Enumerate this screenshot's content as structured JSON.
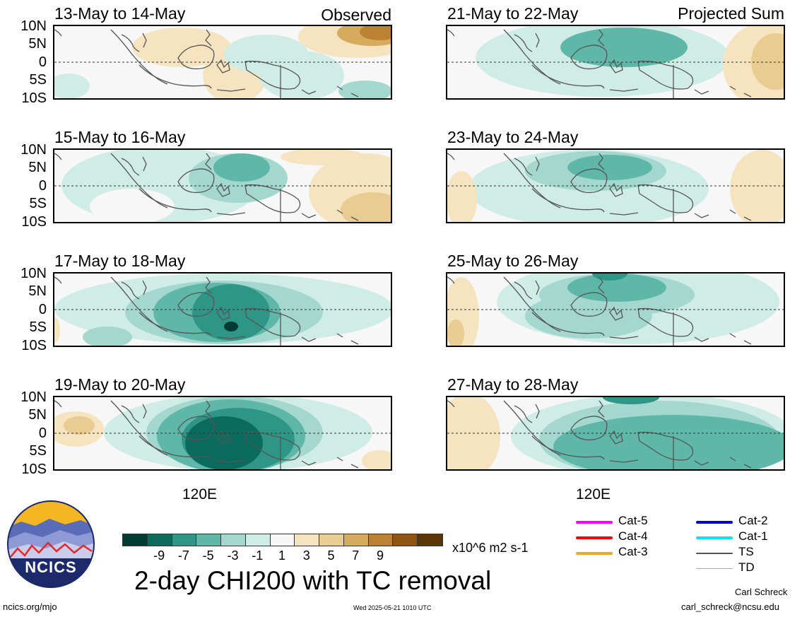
{
  "panels": [
    {
      "title": "13-May to 14-May",
      "label": "Observed"
    },
    {
      "title": "21-May to 22-May",
      "label": "Projected Sum"
    },
    {
      "title": "15-May to 16-May",
      "label": ""
    },
    {
      "title": "23-May to 24-May",
      "label": ""
    },
    {
      "title": "17-May to 18-May",
      "label": ""
    },
    {
      "title": "25-May to 26-May",
      "label": ""
    },
    {
      "title": "19-May to 20-May",
      "label": ""
    },
    {
      "title": "27-May to 28-May",
      "label": ""
    }
  ],
  "lat_labels": [
    "10N",
    "5N",
    "0",
    "5S",
    "10S"
  ],
  "lon_label": "120E",
  "colorbar": {
    "colors": [
      "#023b32",
      "#0b6b5f",
      "#2f9687",
      "#5fb7a8",
      "#a4d8cf",
      "#d0ece6",
      "#f7f7f7",
      "#f5e4bf",
      "#e9cc92",
      "#d7ab5e",
      "#bb8331",
      "#8d5510",
      "#5b3708"
    ],
    "labels": [
      "-9",
      "-7",
      "-5",
      "-3",
      "-1",
      "1",
      "3",
      "5",
      "7",
      "9"
    ],
    "units": "x10^6 m2 s-1"
  },
  "title": "2-day CHI200 with TC removal",
  "logo_text": "NCICS",
  "legend": [
    {
      "label": "Cat-5",
      "color": "#ff00ff"
    },
    {
      "label": "Cat-4",
      "color": "#ff0000"
    },
    {
      "label": "Cat-3",
      "color": "#f5a623"
    },
    {
      "label": "Cat-2",
      "color": "#0000cc"
    },
    {
      "label": "Cat-1",
      "color": "#00e5ff"
    },
    {
      "label": "TS",
      "color": "#555555"
    },
    {
      "label": "TD",
      "color": "#aaaaaa"
    }
  ],
  "footer": {
    "left": "ncics.org/mjo",
    "center": "Wed 2025-05-21 1010 UTC",
    "author": "Carl Schreck",
    "email": "carl_schreck@ncsu.edu"
  }
}
